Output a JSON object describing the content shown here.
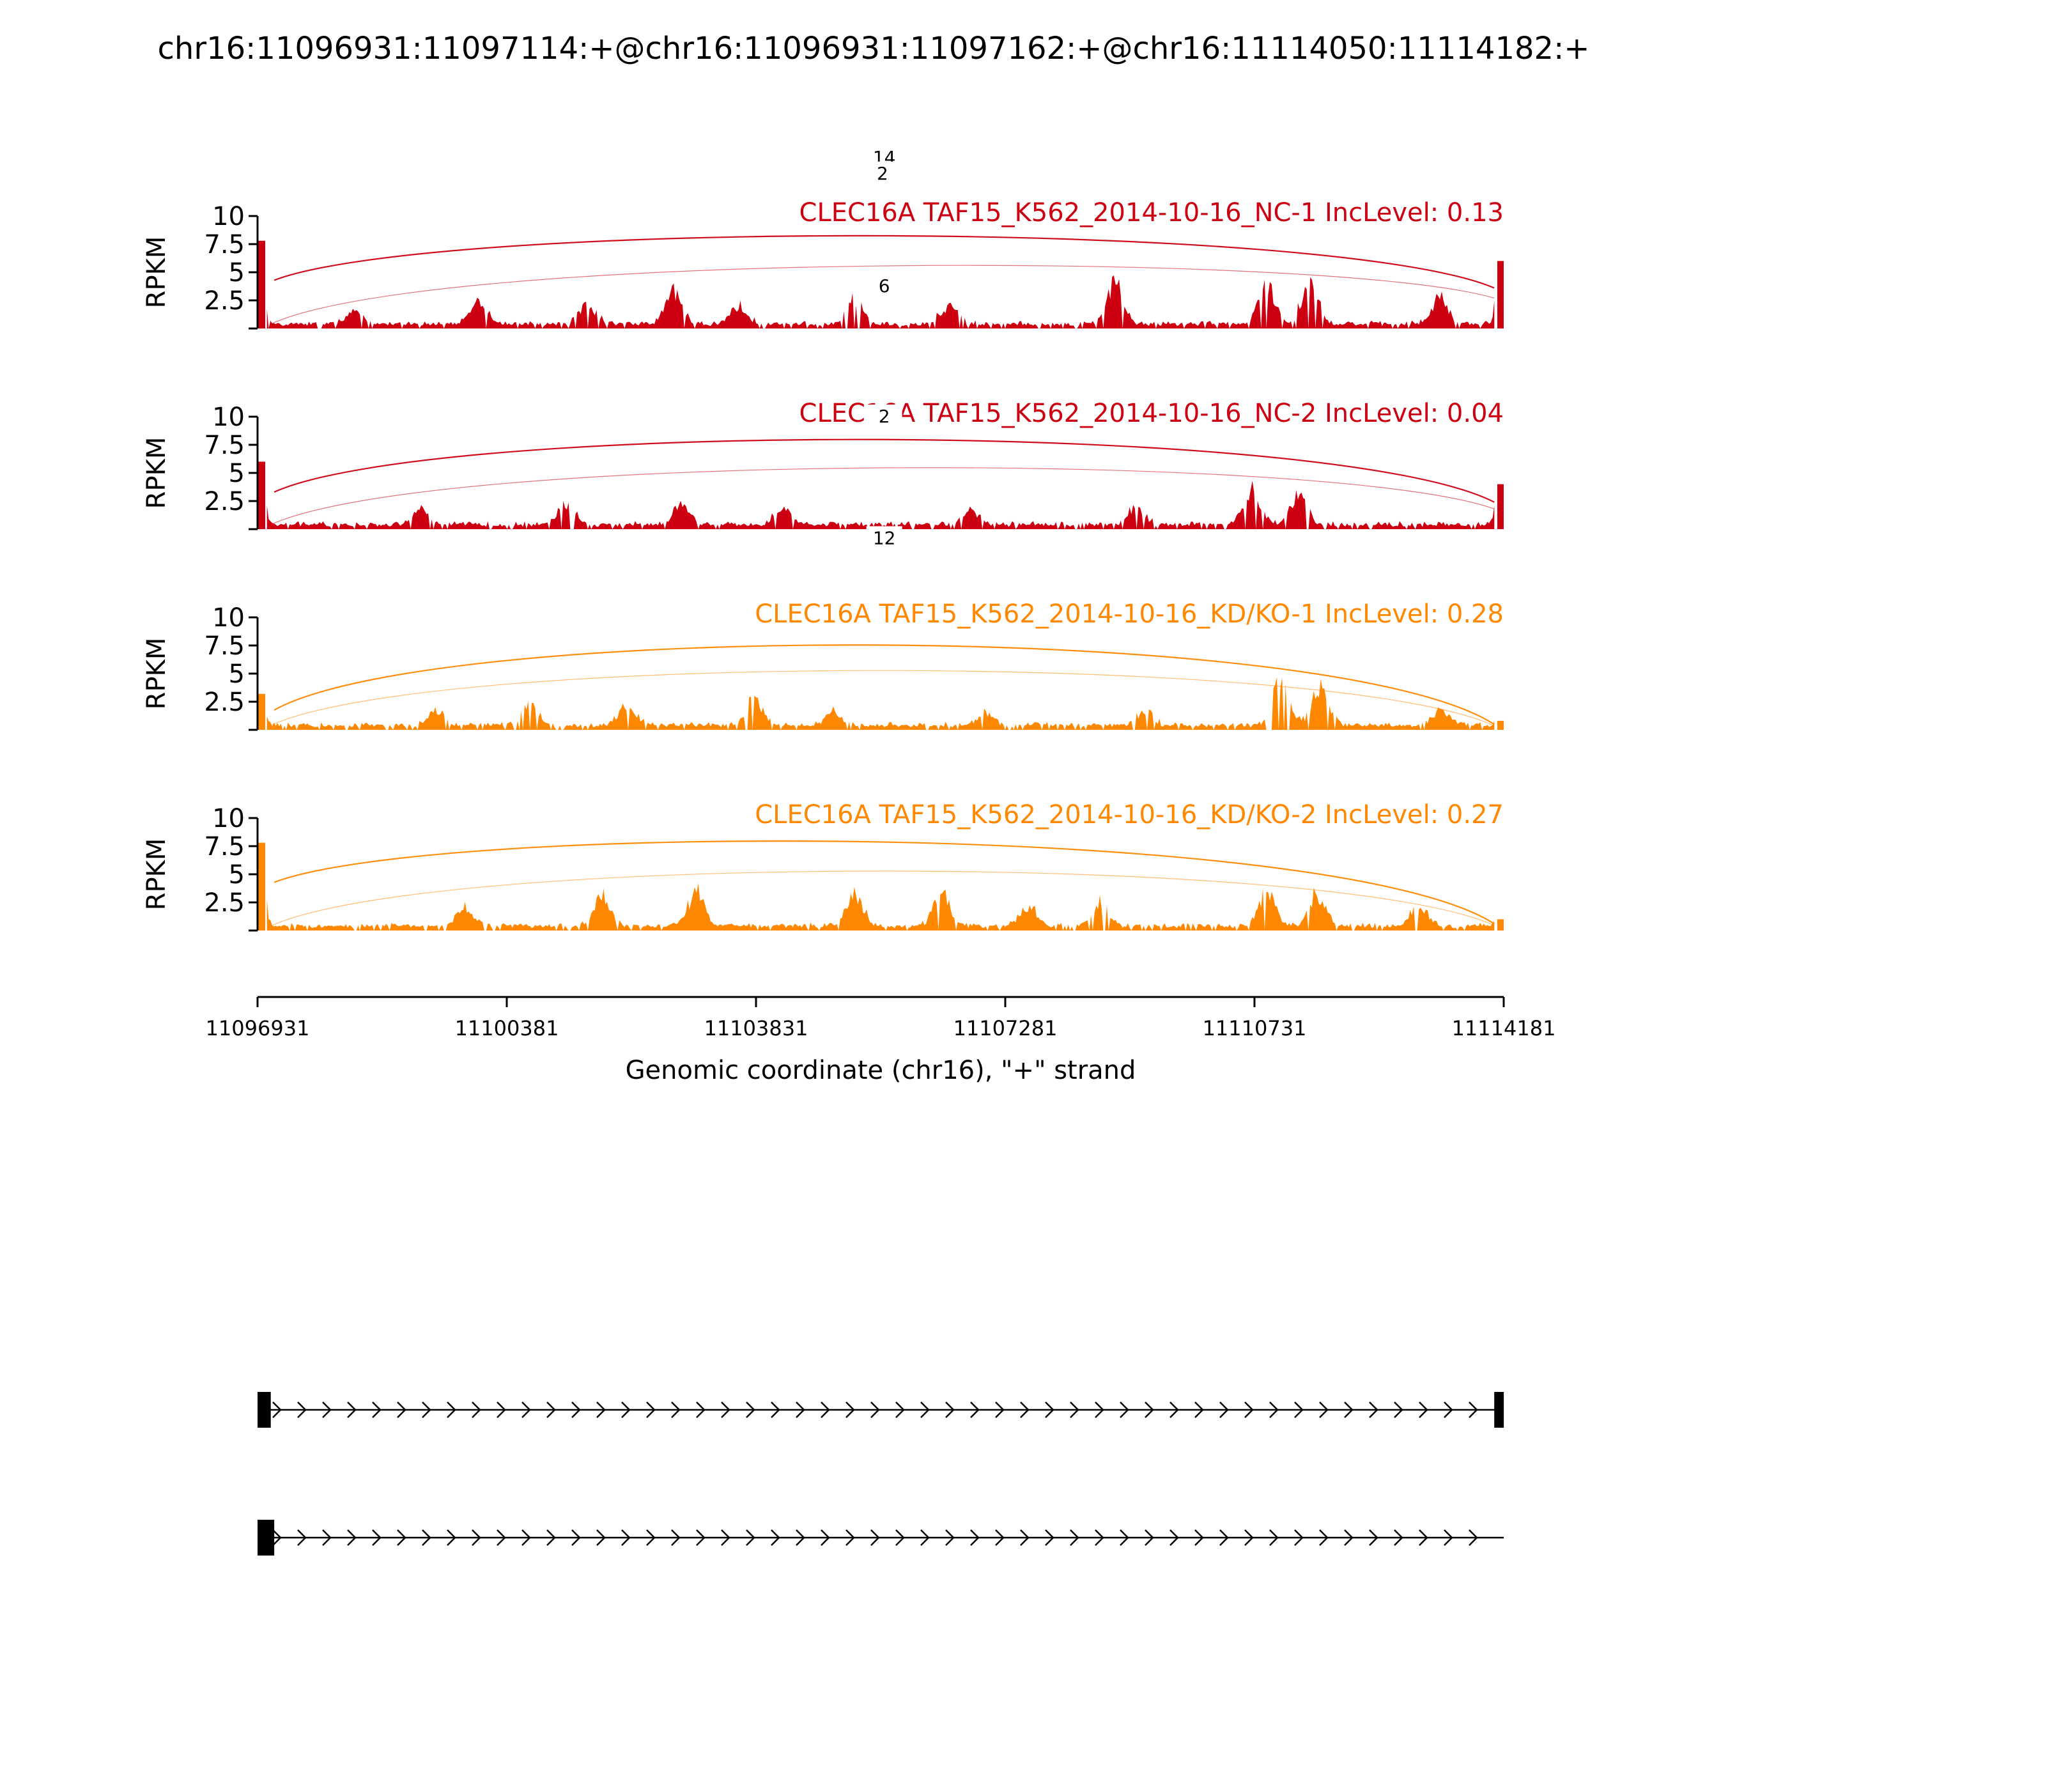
{
  "title": "chr16:11096931:11097114:+@chr16:11096931:11097162:+@chr16:11114050:11114182:+",
  "chart_data": {
    "type": "area",
    "title": "chr16:11096931:11097114:+@chr16:11096931:11097162:+@chr16:11114050:11114182:+",
    "xlabel": "Genomic coordinate (chr16), \"+\" strand",
    "ylabel": "RPKM",
    "xlim": [
      11096931,
      11114181
    ],
    "ylim": [
      0,
      10
    ],
    "xticks": [
      "11096931",
      "11100381",
      "11103831",
      "11107281",
      "11110731",
      "11114181"
    ],
    "yticks": [
      "2.5",
      "5",
      "7.5",
      "10"
    ],
    "grid": false,
    "tracks": [
      {
        "name": "CLEC16A TAF15_K562_2014-10-16_NC-1 IncLevel: 0.13",
        "color": "#cc0011",
        "junctions": [
          {
            "label": "14",
            "start": 11097162,
            "end": 11114050
          },
          {
            "label": "2",
            "start": 11097114,
            "end": 11114050
          }
        ],
        "peaks": [
          [
            11096980,
            7.8
          ],
          [
            11098300,
            1.2
          ],
          [
            11100000,
            2.0
          ],
          [
            11101500,
            1.6
          ],
          [
            11102700,
            2.8
          ],
          [
            11103600,
            1.5
          ],
          [
            11105200,
            2.3
          ],
          [
            11106500,
            1.6
          ],
          [
            11108800,
            3.5
          ],
          [
            11110900,
            3.5
          ],
          [
            11111500,
            4.0
          ],
          [
            11113300,
            2.2
          ],
          [
            11114120,
            6.0
          ]
        ]
      },
      {
        "name": "CLEC16A TAF15_K562_2014-10-16_NC-2 IncLevel: 0.04",
        "color": "#cc0011",
        "junctions": [
          {
            "label": "6",
            "start": 11097162,
            "end": 11114050
          },
          {
            "label": "",
            "start": 11097114,
            "end": 11114050
          }
        ],
        "peaks": [
          [
            11096980,
            6.0
          ],
          [
            11099200,
            1.4
          ],
          [
            11101200,
            1.8
          ],
          [
            11102800,
            1.7
          ],
          [
            11104200,
            1.4
          ],
          [
            11106800,
            1.3
          ],
          [
            11109100,
            1.5
          ],
          [
            11110700,
            3.0
          ],
          [
            11111350,
            2.6
          ],
          [
            11114120,
            4.0
          ]
        ]
      },
      {
        "name": "CLEC16A TAF15_K562_2014-10-16_KD/KO-1 IncLevel: 0.28",
        "color": "#ff8800",
        "junctions": [
          {
            "label": "2",
            "start": 11097162,
            "end": 11114050
          },
          {
            "label": "",
            "start": 11097114,
            "end": 11114050
          }
        ],
        "peaks": [
          [
            11096980,
            3.2
          ],
          [
            11099400,
            1.2
          ],
          [
            11100700,
            1.8
          ],
          [
            11102050,
            1.8
          ],
          [
            11103800,
            2.3
          ],
          [
            11104900,
            1.2
          ],
          [
            11107000,
            1.0
          ],
          [
            11109200,
            1.3
          ],
          [
            11111100,
            4.0
          ],
          [
            11111650,
            3.2
          ],
          [
            11113300,
            1.3
          ],
          [
            11114120,
            0.8
          ]
        ]
      },
      {
        "name": "CLEC16A TAF15_K562_2014-10-16_KD/KO-2 IncLevel: 0.27",
        "color": "#ff8800",
        "junctions": [
          {
            "label": "12",
            "start": 11097162,
            "end": 11114050
          },
          {
            "label": "",
            "start": 11097114,
            "end": 11114050
          }
        ],
        "peaks": [
          [
            11096980,
            7.8
          ],
          [
            11099800,
            1.8
          ],
          [
            11101700,
            2.6
          ],
          [
            11103000,
            3.0
          ],
          [
            11105200,
            2.6
          ],
          [
            11106400,
            2.9
          ],
          [
            11107600,
            1.8
          ],
          [
            11108600,
            2.0
          ],
          [
            11110900,
            3.0
          ],
          [
            11111600,
            2.8
          ],
          [
            11113000,
            1.6
          ],
          [
            11114120,
            1.0
          ]
        ]
      }
    ],
    "transcripts": [
      {
        "exons": [
          [
            11096931,
            11097114
          ],
          [
            11114050,
            11114182
          ]
        ],
        "strand": "+"
      },
      {
        "exons": [
          [
            11096931,
            11097162
          ]
        ],
        "strand": "+"
      }
    ]
  }
}
